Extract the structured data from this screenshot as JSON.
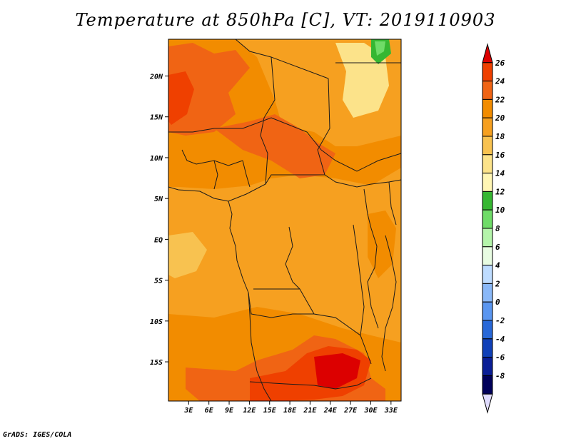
{
  "title": "Temperature at 850hPa [C], VT: 2019110903",
  "credit": "GrADS: IGES/COLA",
  "axes": {
    "lat_labels": [
      "20N",
      "15N",
      "10N",
      "5N",
      "EQ",
      "5S",
      "10S",
      "15S"
    ],
    "lat_values": [
      20,
      15,
      10,
      5,
      0,
      -5,
      -10,
      -15
    ],
    "lon_labels": [
      "3E",
      "6E",
      "9E",
      "12E",
      "15E",
      "18E",
      "21E",
      "24E",
      "27E",
      "30E",
      "33E"
    ],
    "lon_values": [
      3,
      6,
      9,
      12,
      15,
      18,
      21,
      24,
      27,
      30,
      33
    ],
    "lon_range": [
      0,
      34.5
    ],
    "lat_range": [
      -19.8,
      24.5
    ]
  },
  "colorbar": {
    "levels": [
      "26",
      "24",
      "22",
      "20",
      "18",
      "16",
      "14",
      "12",
      "10",
      "8",
      "6",
      "4",
      "2",
      "0",
      "-2",
      "-4",
      "-6",
      "-8"
    ],
    "colors": [
      "#dc0000",
      "#ef4000",
      "#f06414",
      "#f28c00",
      "#f6a020",
      "#f8c250",
      "#fce38a",
      "#fff6b4",
      "#36b732",
      "#6fdc68",
      "#b4f4aa",
      "#e8fce2",
      "#bedcff",
      "#8ab8f8",
      "#5a96f0",
      "#2868d8",
      "#1040b8",
      "#0a1e96",
      "#00005a",
      "#e0dcff"
    ]
  },
  "legend": {
    "units": "C"
  }
}
